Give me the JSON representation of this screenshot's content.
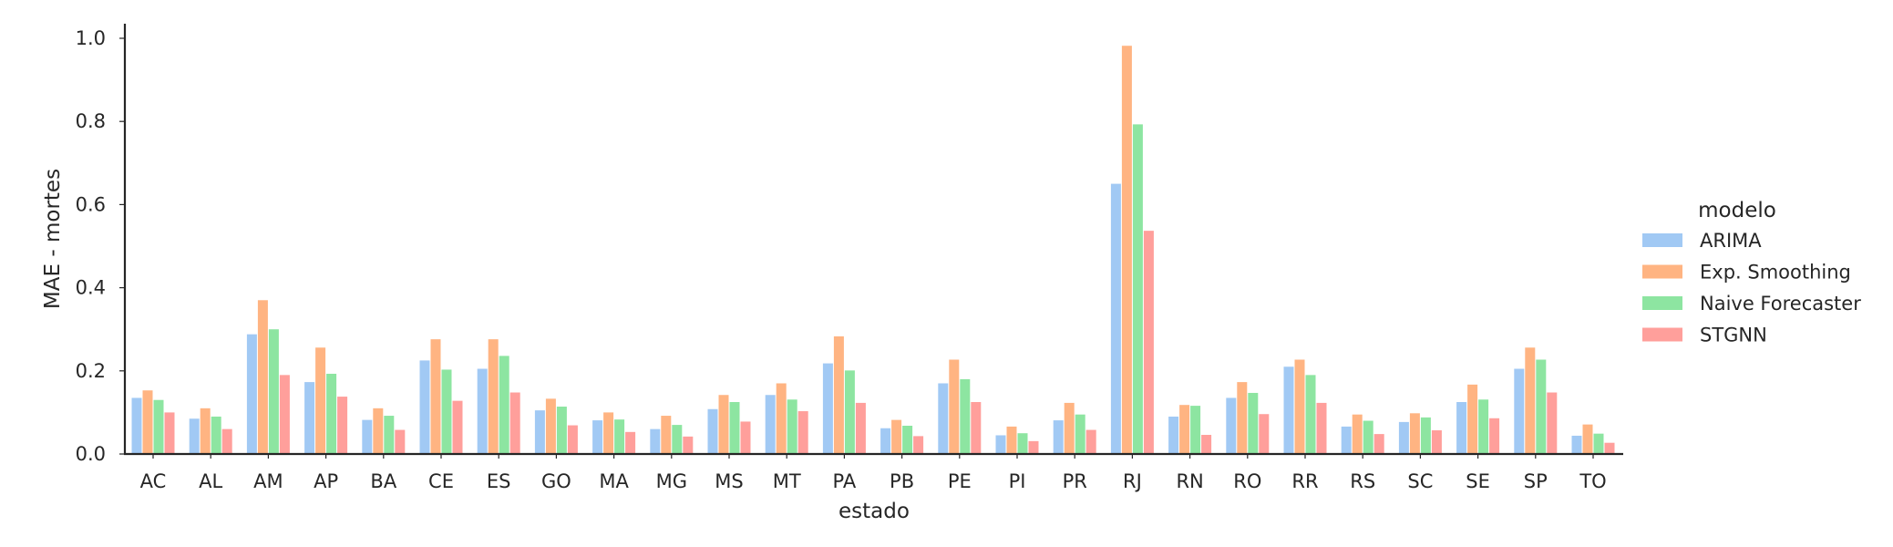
{
  "chart_data": {
    "type": "bar",
    "xlabel": "estado",
    "ylabel": "MAE - mortes",
    "ylim": [
      0,
      1.03
    ],
    "yticks": [
      "0.0",
      "0.2",
      "0.4",
      "0.6",
      "0.8",
      "1.0"
    ],
    "grid": false,
    "legend": {
      "title": "modelo",
      "placement": "right"
    },
    "categories": [
      "AC",
      "AL",
      "AM",
      "AP",
      "BA",
      "CE",
      "ES",
      "GO",
      "MA",
      "MG",
      "MS",
      "MT",
      "PA",
      "PB",
      "PE",
      "PI",
      "PR",
      "RJ",
      "RN",
      "RO",
      "RR",
      "RS",
      "SC",
      "SE",
      "SP",
      "TO"
    ],
    "series": [
      {
        "name": "ARIMA",
        "color": "#a1c9f4",
        "values": [
          0.135,
          0.085,
          0.288,
          0.173,
          0.082,
          0.225,
          0.205,
          0.105,
          0.081,
          0.06,
          0.108,
          0.142,
          0.218,
          0.062,
          0.17,
          0.045,
          0.081,
          0.65,
          0.09,
          0.135,
          0.21,
          0.066,
          0.077,
          0.125,
          0.205,
          0.044
        ]
      },
      {
        "name": "Exp. Smoothing",
        "color": "#ffb482",
        "values": [
          0.153,
          0.11,
          0.37,
          0.256,
          0.11,
          0.276,
          0.276,
          0.133,
          0.1,
          0.092,
          0.142,
          0.17,
          0.283,
          0.082,
          0.227,
          0.066,
          0.123,
          0.982,
          0.118,
          0.173,
          0.227,
          0.095,
          0.098,
          0.167,
          0.256,
          0.071
        ]
      },
      {
        "name": "Naive Forecaster",
        "color": "#8de5a1",
        "values": [
          0.13,
          0.09,
          0.3,
          0.193,
          0.092,
          0.203,
          0.236,
          0.114,
          0.083,
          0.07,
          0.125,
          0.131,
          0.201,
          0.068,
          0.18,
          0.05,
          0.095,
          0.793,
          0.116,
          0.147,
          0.19,
          0.08,
          0.088,
          0.131,
          0.227,
          0.049
        ]
      },
      {
        "name": "STGNN",
        "color": "#ff9f9b",
        "values": [
          0.1,
          0.06,
          0.19,
          0.138,
          0.058,
          0.128,
          0.148,
          0.069,
          0.053,
          0.042,
          0.078,
          0.103,
          0.123,
          0.043,
          0.125,
          0.031,
          0.058,
          0.537,
          0.046,
          0.096,
          0.123,
          0.048,
          0.057,
          0.086,
          0.148,
          0.027
        ]
      }
    ]
  }
}
